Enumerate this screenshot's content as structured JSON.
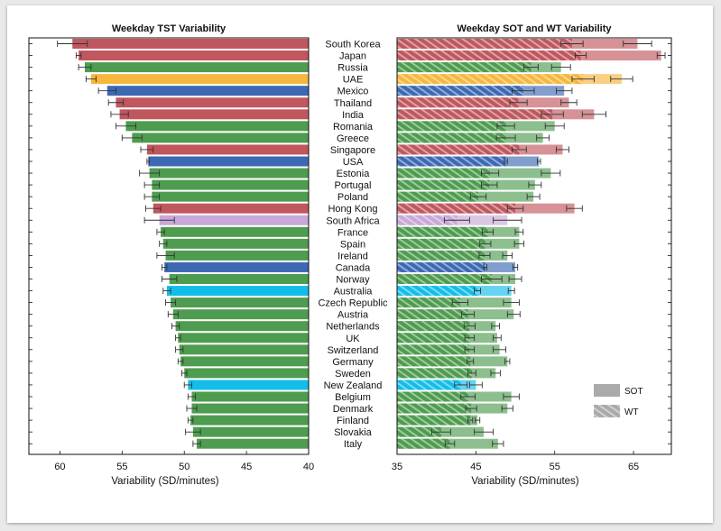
{
  "chart_data": [
    {
      "type": "bar",
      "orientation": "horizontal",
      "title": "Weekday TST Variability",
      "xlabel": "Variability (SD/minutes)",
      "xlim": [
        62.5,
        40
      ],
      "xticks": [
        60,
        55,
        50,
        45,
        40
      ],
      "countries": [
        "South Korea",
        "Japan",
        "Russia",
        "UAE",
        "Mexico",
        "Thailand",
        "India",
        "Romania",
        "Greece",
        "Singapore",
        "USA",
        "Estonia",
        "Portugal",
        "Poland",
        "Hong Kong",
        "South Africa",
        "France",
        "Spain",
        "Ireland",
        "Canada",
        "Norway",
        "Australia",
        "Czech Republic",
        "Austria",
        "Netherlands",
        "UK",
        "Switzerland",
        "Germany",
        "Sweden",
        "New Zealand",
        "Belgium",
        "Denmark",
        "Finland",
        "Slovakia",
        "Italy"
      ],
      "regions": [
        "asia",
        "asia",
        "europe",
        "middle_east",
        "america",
        "asia",
        "asia",
        "europe",
        "europe",
        "asia",
        "america",
        "europe",
        "europe",
        "europe",
        "asia",
        "africa",
        "europe",
        "europe",
        "europe",
        "america",
        "europe",
        "oceania",
        "europe",
        "europe",
        "europe",
        "europe",
        "europe",
        "europe",
        "europe",
        "oceania",
        "europe",
        "europe",
        "europe",
        "europe",
        "europe"
      ],
      "values": [
        59.0,
        58.5,
        58.0,
        57.5,
        56.2,
        55.5,
        55.2,
        54.7,
        54.2,
        53.0,
        52.9,
        52.8,
        52.6,
        52.6,
        52.5,
        52.0,
        51.9,
        51.7,
        51.5,
        51.6,
        51.2,
        51.4,
        51.1,
        50.9,
        50.7,
        50.5,
        50.4,
        50.3,
        50.0,
        49.7,
        49.4,
        49.4,
        49.5,
        49.3,
        49.0
      ],
      "errors": [
        1.2,
        0.2,
        0.5,
        0.4,
        0.7,
        0.6,
        0.7,
        0.8,
        0.8,
        0.5,
        0.1,
        0.8,
        0.6,
        0.6,
        0.6,
        1.2,
        0.3,
        0.3,
        0.7,
        0.2,
        0.6,
        0.3,
        0.4,
        0.4,
        0.3,
        0.2,
        0.3,
        0.2,
        0.2,
        0.3,
        0.3,
        0.4,
        0.2,
        0.6,
        0.3
      ]
    },
    {
      "type": "bar",
      "orientation": "horizontal",
      "title": "Weekday SOT and WT Variability",
      "xlabel": "Variability (SD/minutes)",
      "xlim": [
        35,
        69.8
      ],
      "xticks": [
        35,
        45,
        55,
        65
      ],
      "series": [
        {
          "name": "SOT",
          "values": [
            65.5,
            68.5,
            55.8,
            63.5,
            56.2,
            56.8,
            60.0,
            55.0,
            53.5,
            56.0,
            53.0,
            54.5,
            52.5,
            52.3,
            57.5,
            49.0,
            50.5,
            50.5,
            49.0,
            50.0,
            50.0,
            49.5,
            49.5,
            49.8,
            47.5,
            47.7,
            48.0,
            49.0,
            47.5,
            45.0,
            49.5,
            49.0,
            45.2,
            46.0,
            47.8
          ],
          "errors": [
            1.8,
            0.5,
            1.2,
            1.4,
            1.0,
            1.0,
            1.5,
            1.2,
            0.8,
            0.8,
            0.2,
            1.2,
            0.8,
            0.8,
            1.0,
            1.8,
            0.5,
            0.6,
            0.6,
            0.3,
            0.8,
            0.4,
            1.0,
            0.8,
            0.5,
            0.5,
            0.8,
            0.3,
            0.6,
            0.8,
            1.0,
            0.7,
            0.3,
            1.2,
            0.7
          ]
        },
        {
          "name": "WT",
          "values": [
            57.2,
            58.3,
            52.0,
            58.6,
            51.0,
            50.4,
            54.7,
            48.8,
            48.8,
            50.5,
            48.8,
            46.8,
            46.7,
            45.3,
            50.0,
            42.6,
            46.5,
            46.2,
            46.1,
            46.2,
            47.0,
            45.2,
            43.0,
            44.0,
            44.2,
            44.2,
            44.2,
            44.3,
            44.5,
            43.1,
            44.0,
            44.4,
            44.3,
            40.6,
            41.7
          ],
          "errors": [
            1.4,
            0.7,
            0.9,
            1.4,
            1.4,
            1.1,
            1.4,
            1.1,
            1.2,
            0.9,
            0.2,
            1.1,
            1.0,
            1.0,
            1.0,
            1.6,
            0.7,
            0.7,
            0.7,
            0.2,
            1.3,
            0.4,
            1.0,
            0.8,
            0.7,
            0.6,
            0.6,
            0.4,
            0.5,
            0.8,
            0.9,
            0.7,
            0.3,
            1.2,
            0.6
          ]
        }
      ],
      "legend": {
        "position": "bottom-right",
        "entries": [
          "SOT",
          "WT"
        ]
      }
    }
  ],
  "colors": {
    "asia": "#c0575e",
    "europe": "#4e9c4f",
    "middle_east": "#f5b73d",
    "america": "#3d69b4",
    "africa": "#c9a7d7",
    "oceania": "#12bde9",
    "axis": "#111111",
    "errorbar": "#333333",
    "legend_patch": "#aaaaaa"
  }
}
